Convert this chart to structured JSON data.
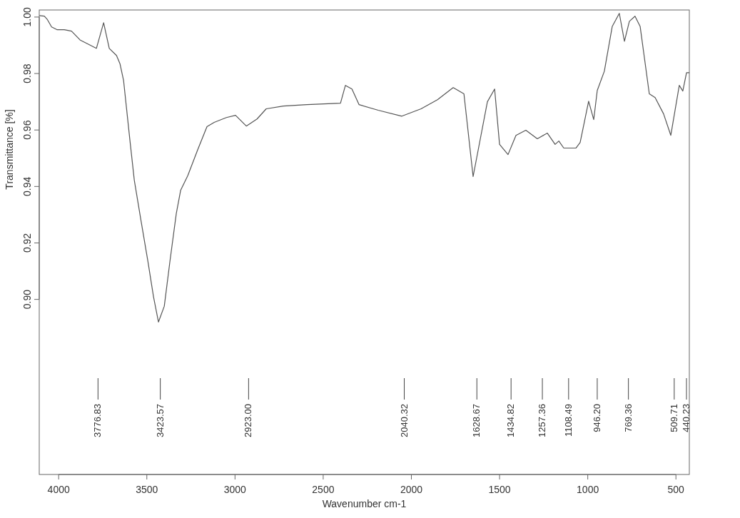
{
  "chart_data": {
    "type": "line",
    "xlabel": "Wavenumber cm-1",
    "ylabel": "Transmittance [%]",
    "xlim": [
      4110,
      424
    ],
    "ylim": [
      0.838,
      1.0025
    ],
    "xticks": [
      4000,
      3500,
      3000,
      2500,
      2000,
      1500,
      1000,
      500
    ],
    "yticks": [
      {
        "value": 0.9,
        "label": "0.90"
      },
      0.92,
      0.94,
      0.96,
      0.98,
      {
        "value": 1.0,
        "label": "1.00"
      }
    ],
    "grid": false,
    "marker": "none",
    "line_style": "solid",
    "series": [
      {
        "color": "#555555",
        "x": [
          4109,
          4081,
          4065,
          4040,
          4008,
          3968,
          3927,
          3879,
          3786,
          3745,
          3713,
          3672,
          3652,
          3632,
          3596,
          3571,
          3535,
          3494,
          3462,
          3434,
          3401,
          3369,
          3333,
          3308,
          3268,
          3211,
          3159,
          3118,
          3049,
          2997,
          2936,
          2875,
          2823,
          2726,
          2592,
          2402,
          2374,
          2337,
          2297,
          2188,
          2054,
          1945,
          1852,
          1763,
          1702,
          1650,
          1569,
          1528,
          1500,
          1452,
          1407,
          1351,
          1286,
          1229,
          1185,
          1164,
          1136,
          1067,
          1043,
          995,
          966,
          946,
          906,
          861,
          821,
          792,
          764,
          732,
          703,
          651,
          618,
          570,
          529,
          481,
          461,
          440,
          424
        ],
        "values": [
          1.0005,
          1.0003,
          0.9992,
          0.9965,
          0.9955,
          0.9955,
          0.995,
          0.9919,
          0.9889,
          0.998,
          0.9889,
          0.9864,
          0.9834,
          0.9776,
          0.9564,
          0.9422,
          0.9286,
          0.9135,
          0.9009,
          0.892,
          0.8976,
          0.9135,
          0.9304,
          0.9387,
          0.9438,
          0.9531,
          0.9612,
          0.9627,
          0.9644,
          0.9652,
          0.9614,
          0.9639,
          0.9675,
          0.9685,
          0.969,
          0.9695,
          0.9758,
          0.9745,
          0.969,
          0.967,
          0.9649,
          0.9675,
          0.9707,
          0.975,
          0.9728,
          0.9435,
          0.97,
          0.9745,
          0.9549,
          0.9513,
          0.9581,
          0.9599,
          0.9569,
          0.9589,
          0.9549,
          0.9561,
          0.9536,
          0.9536,
          0.9556,
          0.9702,
          0.9637,
          0.974,
          0.9808,
          0.9967,
          1.0013,
          0.9914,
          0.9985,
          1.0003,
          0.9967,
          0.9728,
          0.9715,
          0.9657,
          0.9581,
          0.9758,
          0.9738,
          0.9803,
          0.9803
        ]
      }
    ],
    "ref_lines": [
      {
        "axis": "x",
        "value": 3776.83,
        "label": "3776.83"
      },
      {
        "axis": "x",
        "value": 3423.57,
        "label": "3423.57"
      },
      {
        "axis": "x",
        "value": 2923.0,
        "label": "2923.00"
      },
      {
        "axis": "x",
        "value": 2040.32,
        "label": "2040.32"
      },
      {
        "axis": "x",
        "value": 1628.67,
        "label": "1628.67"
      },
      {
        "axis": "x",
        "value": 1434.82,
        "label": "1434.82"
      },
      {
        "axis": "x",
        "value": 1257.36,
        "label": "1257.36"
      },
      {
        "axis": "x",
        "value": 1108.49,
        "label": "1108.49"
      },
      {
        "axis": "x",
        "value": 946.2,
        "label": "946.20"
      },
      {
        "axis": "x",
        "value": 769.36,
        "label": "769.36"
      },
      {
        "axis": "x",
        "value": 509.71,
        "label": "509.71"
      },
      {
        "axis": "x",
        "value": 440.23,
        "label": "440.23"
      }
    ]
  }
}
